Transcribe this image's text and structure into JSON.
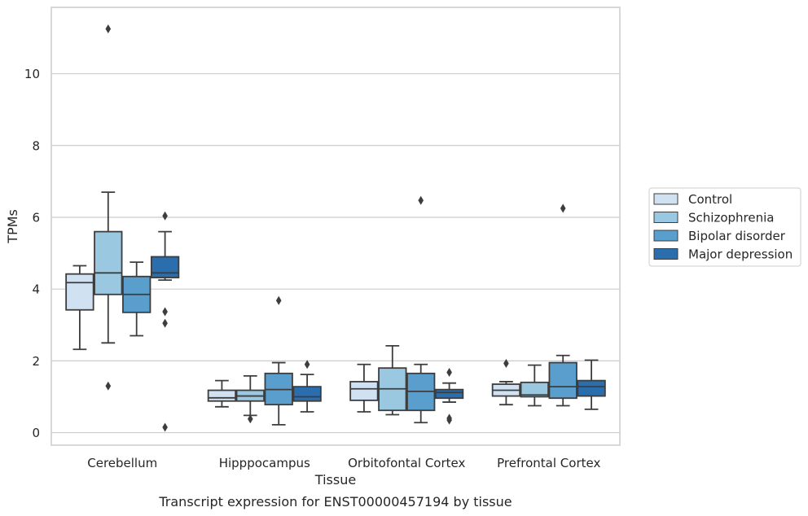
{
  "chart_data": {
    "type": "box",
    "title": "Transcript expression for ENST00000457194 by tissue",
    "xlabel": "Tissue",
    "ylabel": "TPMs",
    "ylim": [
      -0.35,
      11.85
    ],
    "yticks": [
      0,
      2,
      4,
      6,
      8,
      10
    ],
    "grid": "horizontal",
    "legend_position": "right",
    "categories": [
      "Cerebellum",
      "Hipppocampus",
      "Orbitofontal Cortex",
      "Prefrontal Cortex"
    ],
    "series": [
      {
        "name": "Control",
        "color": "#d0e1f2",
        "boxes": [
          {
            "whislo": 2.32,
            "q1": 3.42,
            "med": 4.18,
            "q3": 4.42,
            "whishi": 4.65,
            "fliers": []
          },
          {
            "whislo": 0.72,
            "q1": 0.88,
            "med": 0.97,
            "q3": 1.18,
            "whishi": 1.45,
            "fliers": []
          },
          {
            "whislo": 0.58,
            "q1": 0.9,
            "med": 1.22,
            "q3": 1.42,
            "whishi": 1.9,
            "fliers": []
          },
          {
            "whislo": 0.78,
            "q1": 1.02,
            "med": 1.18,
            "q3": 1.35,
            "whishi": 1.42,
            "fliers": [
              1.93
            ]
          }
        ]
      },
      {
        "name": "Schizophrenia",
        "color": "#9ac8e0",
        "boxes": [
          {
            "whislo": 2.5,
            "q1": 3.85,
            "med": 4.45,
            "q3": 5.6,
            "whishi": 6.7,
            "fliers": [
              11.25,
              1.3
            ]
          },
          {
            "whislo": 0.48,
            "q1": 0.88,
            "med": 1.02,
            "q3": 1.18,
            "whishi": 1.58,
            "fliers": [
              0.38
            ]
          },
          {
            "whislo": 0.5,
            "q1": 0.62,
            "med": 1.22,
            "q3": 1.8,
            "whishi": 2.42,
            "fliers": []
          },
          {
            "whislo": 0.75,
            "q1": 1.0,
            "med": 1.05,
            "q3": 1.4,
            "whishi": 1.88,
            "fliers": []
          }
        ]
      },
      {
        "name": "Bipolar disorder",
        "color": "#5a9ecd",
        "boxes": [
          {
            "whislo": 2.7,
            "q1": 3.35,
            "med": 3.85,
            "q3": 4.35,
            "whishi": 4.75,
            "fliers": []
          },
          {
            "whislo": 0.22,
            "q1": 0.78,
            "med": 1.2,
            "q3": 1.65,
            "whishi": 1.95,
            "fliers": [
              3.68
            ]
          },
          {
            "whislo": 0.28,
            "q1": 0.62,
            "med": 1.15,
            "q3": 1.65,
            "whishi": 1.9,
            "fliers": [
              6.47
            ]
          },
          {
            "whislo": 0.75,
            "q1": 0.96,
            "med": 1.28,
            "q3": 1.95,
            "whishi": 2.15,
            "fliers": [
              6.25
            ]
          }
        ]
      },
      {
        "name": "Major depression",
        "color": "#2a6eae",
        "boxes": [
          {
            "whislo": 4.25,
            "q1": 4.32,
            "med": 4.45,
            "q3": 4.9,
            "whishi": 5.6,
            "fliers": [
              6.04,
              3.37,
              3.05,
              0.15
            ]
          },
          {
            "whislo": 0.58,
            "q1": 0.88,
            "med": 1.0,
            "q3": 1.28,
            "whishi": 1.62,
            "fliers": [
              1.9
            ]
          },
          {
            "whislo": 0.85,
            "q1": 0.96,
            "med": 1.12,
            "q3": 1.2,
            "whishi": 1.38,
            "fliers": [
              1.68,
              0.4,
              0.35
            ]
          },
          {
            "whislo": 0.65,
            "q1": 1.02,
            "med": 1.28,
            "q3": 1.45,
            "whishi": 2.02,
            "fliers": []
          }
        ]
      }
    ]
  }
}
